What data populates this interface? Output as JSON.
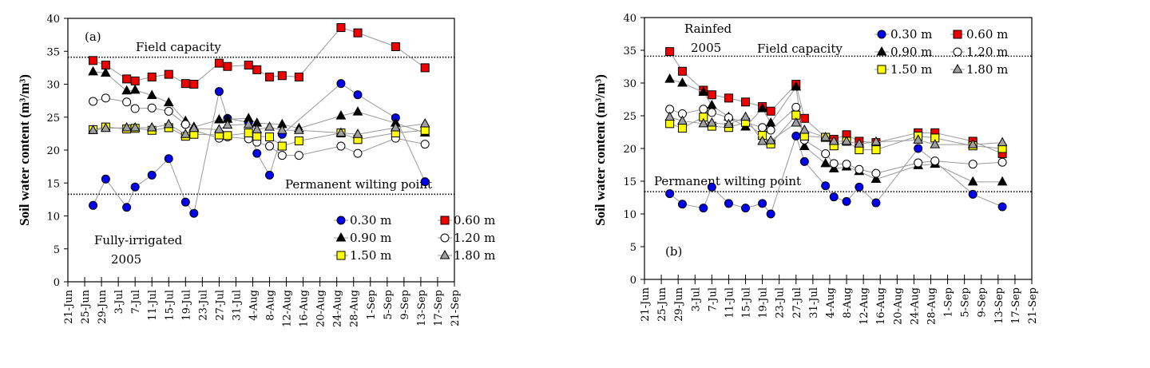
{
  "chart_data": [
    {
      "type": "line",
      "panel_label": "(a)",
      "annotation": [
        "Fully-irrigated",
        "2005"
      ],
      "ylabel": "Soil water content (m³/m³)",
      "ylim": [
        0,
        40
      ],
      "yticks": [
        0,
        5,
        10,
        15,
        20,
        25,
        30,
        35,
        40
      ],
      "xlim": [
        "21-Jun",
        "21-Sep"
      ],
      "xticks": [
        "21-Jun",
        "25-Jun",
        "29-Jun",
        "3-Jul",
        "7-Jul",
        "11-Jul",
        "15-Jul",
        "19-Jul",
        "23-Jul",
        "27-Jul",
        "31-Jul",
        "4-Aug",
        "8-Aug",
        "12-Aug",
        "16-Aug",
        "20-Aug",
        "24-Aug",
        "28-Aug",
        "1-Sep",
        "5-Sep",
        "9-Sep",
        "13-Sep",
        "17-Sep",
        "21-Sep"
      ],
      "legend_placement": "bottom-right",
      "reference_lines": [
        {
          "label": "Field capacity",
          "y": 34.1
        },
        {
          "label": "Permanent wilting point",
          "y": 13.3
        }
      ],
      "x": [
        "27-Jun",
        "30-Jun",
        "5-Jul",
        "7-Jul",
        "11-Jul",
        "15-Jul",
        "19-Jul",
        "21-Jul",
        "27-Jul",
        "29-Jul",
        "3-Aug",
        "5-Aug",
        "8-Aug",
        "11-Aug",
        "15-Aug",
        "25-Aug",
        "29-Aug",
        "7-Sep",
        "14-Sep"
      ],
      "series": [
        {
          "name": "0.30 m",
          "marker": "circle",
          "color": "#0000ee",
          "values": [
            11.6,
            15.6,
            11.3,
            14.4,
            16.2,
            18.7,
            12.1,
            10.4,
            28.9,
            24.8,
            24.2,
            19.5,
            16.2,
            22.4,
            null,
            30.1,
            28.4,
            24.9,
            15.2
          ]
        },
        {
          "name": "0.60 m",
          "marker": "square",
          "color": "#ee0000",
          "values": [
            33.6,
            32.9,
            30.8,
            30.5,
            31.1,
            31.5,
            30.1,
            30.0,
            33.2,
            32.7,
            32.9,
            32.2,
            31.1,
            31.3,
            31.1,
            38.6,
            37.8,
            35.7,
            32.5
          ]
        },
        {
          "name": "0.90 m",
          "marker": "triangle",
          "color": "#000000",
          "values": [
            31.9,
            31.7,
            29.0,
            29.1,
            28.3,
            27.2,
            24.4,
            23.5,
            24.6,
            24.7,
            24.8,
            24.1,
            null,
            23.9,
            23.3,
            25.2,
            25.8,
            24.1,
            22.6
          ]
        },
        {
          "name": "1.20 m",
          "marker": "circle",
          "color": "#ffffff",
          "values": [
            27.4,
            27.9,
            27.3,
            26.3,
            26.4,
            25.9,
            23.9,
            23.0,
            21.8,
            22.0,
            21.7,
            21.2,
            20.6,
            19.2,
            19.2,
            20.6,
            19.5,
            21.8,
            20.9
          ]
        },
        {
          "name": "1.50 m",
          "marker": "square",
          "color": "#ffff00",
          "values": [
            23.1,
            23.5,
            23.2,
            23.3,
            23.0,
            23.4,
            22.1,
            22.4,
            22.3,
            22.2,
            22.6,
            22.1,
            22.0,
            20.6,
            21.4,
            22.6,
            21.6,
            22.6,
            23.0
          ]
        },
        {
          "name": "1.80 m",
          "marker": "triangle",
          "color": "#a0a0a0",
          "values": [
            23.0,
            23.3,
            23.4,
            23.4,
            23.4,
            23.9,
            22.4,
            23.3,
            23.1,
            23.8,
            23.9,
            23.1,
            23.5,
            23.0,
            23.0,
            22.6,
            22.4,
            23.4,
            24.0
          ]
        }
      ]
    },
    {
      "type": "line",
      "panel_label": "(b)",
      "annotation": [
        "Rainfed",
        "2005"
      ],
      "ylabel": "Soil water content (m³/m³)",
      "ylim": [
        0,
        40
      ],
      "yticks": [
        0,
        5,
        10,
        15,
        20,
        25,
        30,
        35,
        40
      ],
      "xlim": [
        "21-Jun",
        "21-Sep"
      ],
      "xticks": [
        "21-Jun",
        "25-Jun",
        "29-Jun",
        "3-Jul",
        "7-Jul",
        "11-Jul",
        "15-Jul",
        "19-Jul",
        "23-Jul",
        "27-Jul",
        "31-Jul",
        "4-Aug",
        "8-Aug",
        "12-Aug",
        "16-Aug",
        "20-Aug",
        "24-Aug",
        "28-Aug",
        "1-Sep",
        "5-Sep",
        "9-Sep",
        "13-Sep",
        "17-Sep",
        "21-Sep"
      ],
      "legend_placement": "top-right",
      "reference_lines": [
        {
          "label": "Field capacity",
          "y": 34.1
        },
        {
          "label": "Permanent wilting point",
          "y": 13.4
        }
      ],
      "x": [
        "27-Jun",
        "30-Jun",
        "5-Jul",
        "7-Jul",
        "11-Jul",
        "15-Jul",
        "19-Jul",
        "21-Jul",
        "27-Jul",
        "29-Jul",
        "3-Aug",
        "5-Aug",
        "8-Aug",
        "11-Aug",
        "15-Aug",
        "25-Aug",
        "29-Aug",
        "7-Sep",
        "14-Sep"
      ],
      "series": [
        {
          "name": "0.30 m",
          "marker": "circle",
          "color": "#0000ee",
          "values": [
            13.1,
            11.5,
            10.9,
            14.1,
            11.6,
            10.9,
            11.6,
            10.0,
            21.9,
            18.0,
            14.3,
            12.6,
            11.9,
            14.1,
            11.7,
            20.0,
            18.0,
            13.0,
            11.1
          ]
        },
        {
          "name": "0.60 m",
          "marker": "square",
          "color": "#ee0000",
          "values": [
            34.8,
            31.8,
            28.9,
            28.2,
            27.7,
            27.1,
            26.4,
            25.7,
            29.8,
            24.6,
            21.7,
            21.4,
            22.1,
            21.1,
            20.9,
            22.4,
            22.4,
            21.1,
            19.2
          ]
        },
        {
          "name": "0.90 m",
          "marker": "triangle",
          "color": "#000000",
          "values": [
            30.6,
            30.0,
            28.6,
            26.6,
            24.8,
            23.3,
            26.1,
            23.9,
            29.4,
            20.3,
            17.7,
            16.9,
            17.2,
            16.5,
            15.3,
            17.4,
            17.6,
            14.9,
            14.9
          ]
        },
        {
          "name": "1.20 m",
          "marker": "circle",
          "color": "#ffffff",
          "values": [
            26.0,
            25.3,
            26.0,
            25.5,
            24.7,
            24.0,
            23.2,
            22.8,
            26.3,
            21.3,
            19.2,
            17.7,
            17.6,
            16.8,
            16.2,
            17.8,
            18.1,
            17.6,
            17.9
          ]
        },
        {
          "name": "1.50 m",
          "marker": "square",
          "color": "#ffff00",
          "values": [
            23.8,
            23.1,
            24.8,
            23.4,
            23.2,
            24.0,
            22.0,
            20.7,
            25.1,
            21.9,
            21.7,
            20.4,
            21.1,
            19.8,
            19.8,
            21.9,
            21.6,
            20.4,
            20.0
          ]
        },
        {
          "name": "1.80 m",
          "marker": "triangle",
          "color": "#a0a0a0",
          "values": [
            24.8,
            24.2,
            23.8,
            23.9,
            23.7,
            24.8,
            21.1,
            21.2,
            23.9,
            22.8,
            21.7,
            21.1,
            21.1,
            20.7,
            21.0,
            21.3,
            20.6,
            20.6,
            20.9
          ]
        }
      ]
    }
  ]
}
